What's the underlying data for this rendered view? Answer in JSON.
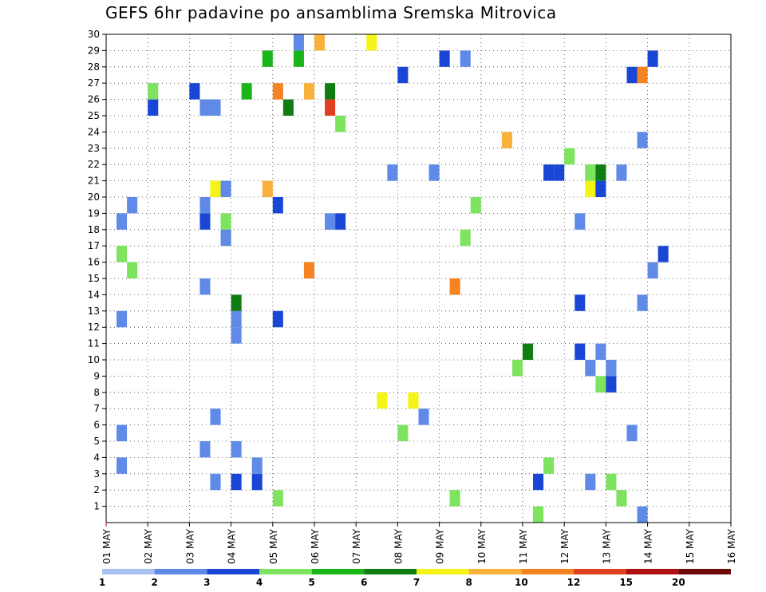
{
  "title": "GEFS 6hr padavine po ansamblima Sremska Mitrovica",
  "chart_data": {
    "type": "heatmap",
    "title": "GEFS 6hr padavine po ansamblima Sremska Mitrovica",
    "x_ticks": [
      "01 MAY",
      "02 MAY",
      "03 MAY",
      "04 MAY",
      "05 MAY",
      "06 MAY",
      "07 MAY",
      "08 MAY",
      "09 MAY",
      "10 MAY",
      "11 MAY",
      "12 MAY",
      "13 MAY",
      "14 MAY",
      "15 MAY",
      "16 MAY"
    ],
    "y_ticks": [
      1,
      2,
      3,
      4,
      5,
      6,
      7,
      8,
      9,
      10,
      11,
      12,
      13,
      14,
      15,
      16,
      17,
      18,
      19,
      20,
      21,
      22,
      23,
      24,
      25,
      26,
      27,
      28,
      29,
      30
    ],
    "xlim": [
      0,
      60
    ],
    "ylim": [
      0,
      30
    ],
    "grid": true,
    "legend": {
      "labels": [
        "1",
        "2",
        "3",
        "4",
        "5",
        "6",
        "7",
        "8",
        "10",
        "12",
        "15",
        "20"
      ],
      "colors": [
        "#a9bff2",
        "#5f8ae8",
        "#1a46d6",
        "#7ee35f",
        "#19b519",
        "#0f7d12",
        "#f6f416",
        "#f8b23c",
        "#f68321",
        "#e0401f",
        "#b01010",
        "#6e0a0a"
      ]
    },
    "cells": [
      [
        1,
        3,
        1
      ],
      [
        1,
        5,
        1
      ],
      [
        1,
        12,
        1
      ],
      [
        1,
        16,
        3
      ],
      [
        1,
        18,
        1
      ],
      [
        2,
        15,
        3
      ],
      [
        2,
        19,
        1
      ],
      [
        4,
        25,
        2
      ],
      [
        4,
        26,
        3
      ],
      [
        8,
        26,
        2
      ],
      [
        9,
        25,
        1
      ],
      [
        9,
        4,
        1
      ],
      [
        9,
        14,
        1
      ],
      [
        9,
        18,
        2
      ],
      [
        9,
        19,
        1
      ],
      [
        10,
        2,
        1
      ],
      [
        10,
        6,
        1
      ],
      [
        10,
        20,
        6
      ],
      [
        10,
        25,
        1
      ],
      [
        11,
        17,
        3
      ],
      [
        11,
        18,
        3
      ],
      [
        11,
        20,
        1
      ],
      [
        11,
        17,
        1
      ],
      [
        12,
        4,
        1
      ],
      [
        12,
        2,
        2
      ],
      [
        12,
        11,
        1
      ],
      [
        12,
        12,
        1
      ],
      [
        12,
        13,
        5
      ],
      [
        13,
        26,
        4
      ],
      [
        14,
        2,
        2
      ],
      [
        14,
        3,
        1
      ],
      [
        15,
        20,
        7
      ],
      [
        15,
        28,
        4
      ],
      [
        16,
        26,
        8
      ],
      [
        16,
        12,
        2
      ],
      [
        16,
        19,
        2
      ],
      [
        16,
        1,
        3
      ],
      [
        17,
        25,
        5
      ],
      [
        18,
        28,
        4
      ],
      [
        18,
        29,
        1
      ],
      [
        19,
        26,
        7
      ],
      [
        19,
        15,
        8
      ],
      [
        20,
        29,
        7
      ],
      [
        21,
        26,
        5
      ],
      [
        21,
        25,
        9
      ],
      [
        21,
        18,
        1
      ],
      [
        22,
        18,
        2
      ],
      [
        22,
        24,
        3
      ],
      [
        25,
        29,
        6
      ],
      [
        26,
        7,
        6
      ],
      [
        27,
        21,
        1
      ],
      [
        28,
        27,
        2
      ],
      [
        28,
        5,
        3
      ],
      [
        29,
        7,
        6
      ],
      [
        30,
        6,
        1
      ],
      [
        31,
        21,
        1
      ],
      [
        32,
        28,
        2
      ],
      [
        33,
        1,
        3
      ],
      [
        33,
        14,
        8
      ],
      [
        34,
        17,
        3
      ],
      [
        34,
        28,
        1
      ],
      [
        35,
        19,
        3
      ],
      [
        38,
        23,
        7
      ],
      [
        39,
        9,
        3
      ],
      [
        40,
        10,
        5
      ],
      [
        41,
        0,
        3
      ],
      [
        41,
        2,
        2
      ],
      [
        42,
        3,
        3
      ],
      [
        42,
        21,
        2
      ],
      [
        43,
        21,
        2
      ],
      [
        44,
        22,
        3
      ],
      [
        45,
        18,
        1
      ],
      [
        45,
        13,
        2
      ],
      [
        45,
        10,
        2
      ],
      [
        46,
        2,
        1
      ],
      [
        46,
        9,
        1
      ],
      [
        46,
        20,
        6
      ],
      [
        46,
        21,
        3
      ],
      [
        47,
        8,
        3
      ],
      [
        47,
        10,
        1
      ],
      [
        47,
        20,
        2
      ],
      [
        47,
        21,
        5
      ],
      [
        48,
        8,
        2
      ],
      [
        48,
        9,
        1
      ],
      [
        48,
        2,
        3
      ],
      [
        49,
        1,
        3
      ],
      [
        49,
        21,
        1
      ],
      [
        50,
        27,
        2
      ],
      [
        50,
        5,
        1
      ],
      [
        51,
        13,
        1
      ],
      [
        51,
        0,
        1
      ],
      [
        51,
        23,
        1
      ],
      [
        51,
        27,
        8
      ],
      [
        52,
        28,
        2
      ],
      [
        52,
        15,
        1
      ],
      [
        53,
        16,
        2
      ]
    ]
  },
  "legend_ticks": [
    "1",
    "2",
    "3",
    "4",
    "5",
    "6",
    "7",
    "8",
    "10",
    "12",
    "15",
    "20"
  ]
}
